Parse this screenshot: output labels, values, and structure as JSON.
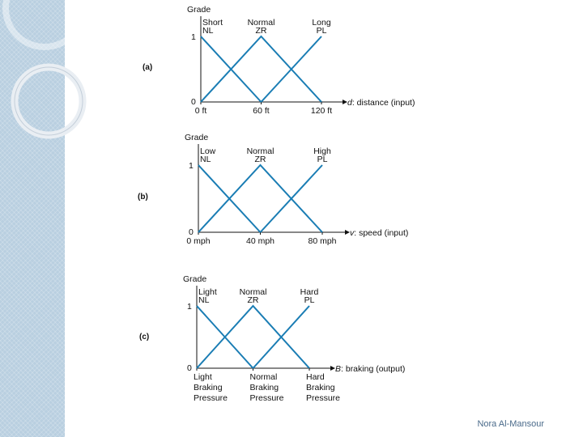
{
  "footer": "Nora Al-Mansour",
  "colors": {
    "line": "#1a7db4",
    "axis": "#111111",
    "sidebar": "#b9cfe0"
  },
  "chart_data": [
    {
      "panel": "(a)",
      "type": "line",
      "ylabel": "Grade",
      "xlabel": "d: distance (input)",
      "xlabel_italic": "d",
      "xlabel_rest": ": distance (input)",
      "ylim": [
        0,
        1
      ],
      "xlim": [
        0,
        120
      ],
      "y_ticks": [
        "0",
        "1"
      ],
      "x_ticks": [
        {
          "value": 0,
          "label": [
            "0 ft"
          ]
        },
        {
          "value": 60,
          "label": [
            "60 ft"
          ]
        },
        {
          "value": 120,
          "label": [
            "120 ft"
          ]
        }
      ],
      "series": [
        {
          "label_top": "Short",
          "label_bottom": "NL",
          "label_at": 0,
          "x": [
            0,
            60
          ],
          "y": [
            1,
            0
          ]
        },
        {
          "label_top": "Normal",
          "label_bottom": "ZR",
          "label_at": 60,
          "x": [
            0,
            60,
            120
          ],
          "y": [
            0,
            1,
            0
          ]
        },
        {
          "label_top": "Long",
          "label_bottom": "PL",
          "label_at": 120,
          "x": [
            60,
            120
          ],
          "y": [
            0,
            1
          ]
        }
      ]
    },
    {
      "panel": "(b)",
      "type": "line",
      "ylabel": "Grade",
      "xlabel": "v: speed (input)",
      "xlabel_italic": "v",
      "xlabel_rest": ": speed (input)",
      "ylim": [
        0,
        1
      ],
      "xlim": [
        0,
        80
      ],
      "y_ticks": [
        "0",
        "1"
      ],
      "x_ticks": [
        {
          "value": 0,
          "label": [
            "0 mph"
          ]
        },
        {
          "value": 40,
          "label": [
            "40 mph"
          ]
        },
        {
          "value": 80,
          "label": [
            "80 mph"
          ]
        }
      ],
      "series": [
        {
          "label_top": "Low",
          "label_bottom": "NL",
          "label_at": 0,
          "x": [
            0,
            40
          ],
          "y": [
            1,
            0
          ]
        },
        {
          "label_top": "Normal",
          "label_bottom": "ZR",
          "label_at": 40,
          "x": [
            0,
            40,
            80
          ],
          "y": [
            0,
            1,
            0
          ]
        },
        {
          "label_top": "High",
          "label_bottom": "PL",
          "label_at": 80,
          "x": [
            40,
            80
          ],
          "y": [
            0,
            1
          ]
        }
      ]
    },
    {
      "panel": "(c)",
      "type": "line",
      "ylabel": "Grade",
      "xlabel": "B: braking (output)",
      "xlabel_italic": "B",
      "xlabel_rest": ": braking (output)",
      "ylim": [
        0,
        1
      ],
      "xlim": [
        0,
        2
      ],
      "y_ticks": [
        "0",
        "1"
      ],
      "x_ticks": [
        {
          "value": 0,
          "label": [
            "Light",
            "Braking",
            "Pressure"
          ]
        },
        {
          "value": 1,
          "label": [
            "Normal",
            "Braking",
            "Pressure"
          ]
        },
        {
          "value": 2,
          "label": [
            "Hard",
            "Braking",
            "Pressure"
          ]
        }
      ],
      "series": [
        {
          "label_top": "Light",
          "label_bottom": "NL",
          "label_at": 0,
          "x": [
            0,
            1
          ],
          "y": [
            1,
            0
          ]
        },
        {
          "label_top": "Normal",
          "label_bottom": "ZR",
          "label_at": 1,
          "x": [
            0,
            1,
            2
          ],
          "y": [
            0,
            1,
            0
          ]
        },
        {
          "label_top": "Hard",
          "label_bottom": "PL",
          "label_at": 2,
          "x": [
            1,
            2
          ],
          "y": [
            0,
            1
          ]
        }
      ]
    }
  ]
}
